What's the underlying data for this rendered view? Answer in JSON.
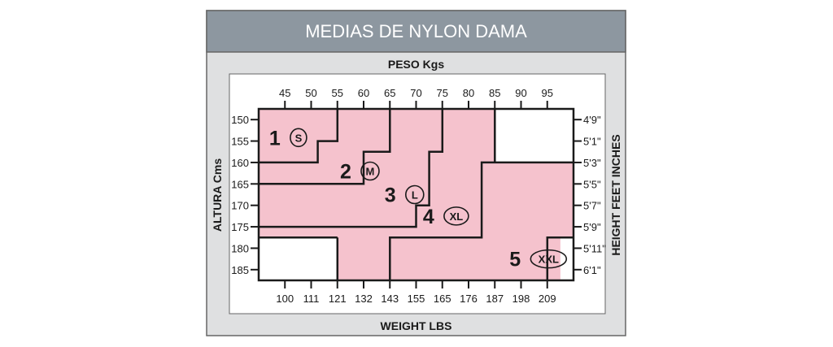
{
  "title": "MEDIAS DE NYLON DAMA",
  "colors": {
    "header": "#8d97a0",
    "frame_fill": "#dfe0e1",
    "frame_border": "#666666",
    "region_fill": "#f5c2cd",
    "line": "#1a1a1a",
    "inner_bg": "#ffffff"
  },
  "chart_data": {
    "type": "table",
    "axes": {
      "top": {
        "title": "PESO Kgs",
        "ticks": [
          "45",
          "50",
          "55",
          "60",
          "65",
          "70",
          "75",
          "80",
          "85",
          "90",
          "95"
        ]
      },
      "bottom": {
        "title": "WEIGHT LBS",
        "ticks": [
          "100",
          "111",
          "121",
          "132",
          "143",
          "155",
          "165",
          "176",
          "187",
          "198",
          "209"
        ]
      },
      "left": {
        "title": "ALTURA Cms",
        "ticks": [
          "150",
          "155",
          "160",
          "165",
          "170",
          "175",
          "180",
          "185"
        ]
      },
      "right": {
        "title": "HEIGHT FEET INCHES",
        "ticks": [
          "4'9\"",
          "5'1\"",
          "5'3\"",
          "5'5\"",
          "5'7\"",
          "5'9\"",
          "5'11\"",
          "6'1\""
        ]
      }
    },
    "weight_range_kg": [
      40,
      100
    ],
    "height_range_cm": [
      147.5,
      187.5
    ],
    "sizes": [
      {
        "number": "1",
        "code": "S",
        "weight_kg": [
          40,
          55
        ],
        "height_cm": [
          147.5,
          160
        ],
        "boundary": [
          [
            40,
            160
          ],
          [
            51.25,
            160
          ],
          [
            51.25,
            155
          ],
          [
            55,
            155
          ],
          [
            55,
            147.5
          ]
        ]
      },
      {
        "number": "2",
        "code": "M",
        "weight_kg": [
          40,
          65
        ],
        "height_cm": [
          147.5,
          165
        ],
        "boundary": [
          [
            40,
            165
          ],
          [
            60,
            165
          ],
          [
            60,
            157.5
          ],
          [
            65,
            157.5
          ],
          [
            65,
            147.5
          ]
        ]
      },
      {
        "number": "3",
        "code": "L",
        "weight_kg": [
          40,
          75
        ],
        "height_cm": [
          147.5,
          175
        ],
        "boundary": [
          [
            40,
            175
          ],
          [
            65,
            175
          ],
          [
            65,
            170
          ],
          [
            70,
            170
          ],
          [
            70,
            157.5
          ],
          [
            75,
            157.5
          ],
          [
            75,
            147.5
          ]
        ]
      },
      {
        "number": "4",
        "code": "XL",
        "weight_kg": [
          55,
          100
        ],
        "height_cm": [
          147.5,
          187.5
        ],
        "boundary": [
          [
            65,
            187.5
          ],
          [
            65,
            175
          ],
          [
            100,
            175
          ]
        ],
        "boundary_b": [
          [
            82.5,
            187.5
          ]
        ],
        "boundary_c": [
          [
            85,
            147.5
          ],
          [
            85,
            157.5
          ],
          [
            100,
            157.5
          ]
        ]
      },
      {
        "number": "5",
        "code": "XXL",
        "weight_kg": [
          65,
          100
        ],
        "height_cm": [
          160,
          187.5
        ],
        "boundary": [
          [
            65,
            187.5
          ],
          [
            65,
            175
          ],
          [
            100,
            175
          ]
        ]
      }
    ]
  }
}
